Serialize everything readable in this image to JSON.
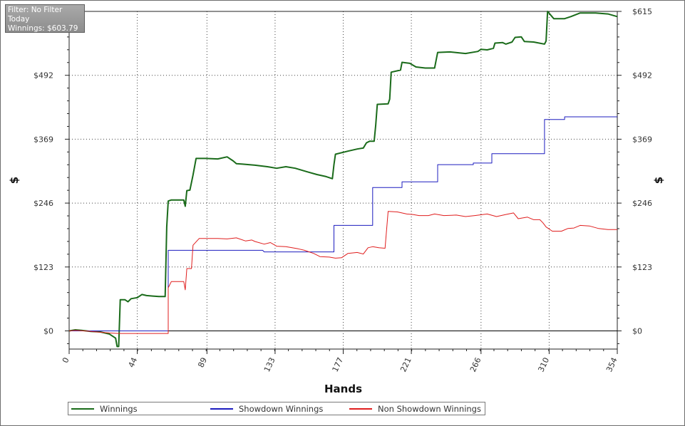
{
  "info_box": {
    "filter": "Filter: No Filter",
    "period": "Today",
    "winnings": "Winnings: $603.79"
  },
  "chart_data": {
    "type": "line",
    "xlabel": "Hands",
    "ylabel": "$",
    "xlim": [
      0,
      354
    ],
    "ylim": [
      -35,
      615
    ],
    "x_ticks": [
      0,
      44,
      89,
      133,
      177,
      221,
      266,
      310,
      354
    ],
    "y_ticks": [
      0,
      123,
      246,
      369,
      492,
      615
    ],
    "y_tick_labels": [
      "$0",
      "$123",
      "$246",
      "$369",
      "$492",
      "$615"
    ],
    "grid": true,
    "legend_position": "bottom",
    "series": [
      {
        "name": "Winnings",
        "color": "#1a6b1a",
        "points": [
          [
            0,
            0
          ],
          [
            4,
            2
          ],
          [
            8,
            1
          ],
          [
            14,
            -1
          ],
          [
            20,
            -2
          ],
          [
            26,
            -6
          ],
          [
            30,
            -14
          ],
          [
            31,
            -30
          ],
          [
            32,
            -30
          ],
          [
            33,
            60
          ],
          [
            36,
            60
          ],
          [
            38,
            56
          ],
          [
            40,
            62
          ],
          [
            44,
            64
          ],
          [
            47,
            70
          ],
          [
            50,
            68
          ],
          [
            54,
            67
          ],
          [
            58,
            66
          ],
          [
            62,
            66
          ],
          [
            63,
            200
          ],
          [
            64,
            250
          ],
          [
            66,
            252
          ],
          [
            74,
            252
          ],
          [
            75,
            240
          ],
          [
            76,
            270
          ],
          [
            78,
            271
          ],
          [
            80,
            300
          ],
          [
            82,
            332
          ],
          [
            88,
            332
          ],
          [
            96,
            331
          ],
          [
            102,
            335
          ],
          [
            106,
            327
          ],
          [
            108,
            322
          ],
          [
            112,
            321
          ],
          [
            120,
            319
          ],
          [
            128,
            316
          ],
          [
            134,
            313
          ],
          [
            140,
            316
          ],
          [
            146,
            313
          ],
          [
            154,
            306
          ],
          [
            160,
            301
          ],
          [
            166,
            297
          ],
          [
            170,
            293
          ],
          [
            171,
            320
          ],
          [
            172,
            340
          ],
          [
            180,
            346
          ],
          [
            186,
            350
          ],
          [
            190,
            352
          ],
          [
            192,
            362
          ],
          [
            194,
            365
          ],
          [
            197,
            365
          ],
          [
            198,
            396
          ],
          [
            199,
            436
          ],
          [
            206,
            437
          ],
          [
            207,
            446
          ],
          [
            208,
            498
          ],
          [
            214,
            502
          ],
          [
            215,
            517
          ],
          [
            220,
            515
          ],
          [
            224,
            508
          ],
          [
            230,
            506
          ],
          [
            236,
            506
          ],
          [
            238,
            536
          ],
          [
            246,
            537
          ],
          [
            252,
            535
          ],
          [
            256,
            534
          ],
          [
            264,
            538
          ],
          [
            266,
            542
          ],
          [
            270,
            541
          ],
          [
            274,
            544
          ],
          [
            275,
            554
          ],
          [
            280,
            555
          ],
          [
            282,
            552
          ],
          [
            286,
            556
          ],
          [
            288,
            565
          ],
          [
            292,
            566
          ],
          [
            294,
            557
          ],
          [
            300,
            556
          ],
          [
            307,
            552
          ],
          [
            308,
            558
          ],
          [
            309,
            615
          ],
          [
            313,
            601
          ],
          [
            320,
            601
          ],
          [
            324,
            605
          ],
          [
            330,
            612
          ],
          [
            340,
            612
          ],
          [
            348,
            610
          ],
          [
            354,
            605
          ]
        ]
      },
      {
        "name": "Showdown Winnings",
        "color": "#1c1cbf",
        "points": [
          [
            0,
            0
          ],
          [
            64,
            0
          ],
          [
            64,
            155
          ],
          [
            125,
            155
          ],
          [
            126,
            152
          ],
          [
            166,
            152
          ],
          [
            171,
            152
          ],
          [
            171,
            203
          ],
          [
            196,
            203
          ],
          [
            196,
            276
          ],
          [
            215,
            276
          ],
          [
            215,
            287
          ],
          [
            238,
            287
          ],
          [
            238,
            320
          ],
          [
            261,
            320
          ],
          [
            261,
            323
          ],
          [
            273,
            323
          ],
          [
            273,
            341
          ],
          [
            307,
            341
          ],
          [
            307,
            407
          ],
          [
            320,
            407
          ],
          [
            320,
            412
          ],
          [
            354,
            412
          ]
        ]
      },
      {
        "name": "Non Showdown Winnings",
        "color": "#e01e1e",
        "points": [
          [
            0,
            0
          ],
          [
            4,
            1
          ],
          [
            10,
            0
          ],
          [
            26,
            -4
          ],
          [
            32,
            -5
          ],
          [
            64,
            -5
          ],
          [
            64,
            83
          ],
          [
            66,
            95
          ],
          [
            74,
            95
          ],
          [
            75,
            79
          ],
          [
            76,
            120
          ],
          [
            79,
            120
          ],
          [
            80,
            165
          ],
          [
            84,
            178
          ],
          [
            90,
            178
          ],
          [
            96,
            178
          ],
          [
            102,
            177
          ],
          [
            108,
            179
          ],
          [
            114,
            173
          ],
          [
            118,
            175
          ],
          [
            120,
            172
          ],
          [
            126,
            167
          ],
          [
            130,
            170
          ],
          [
            134,
            163
          ],
          [
            140,
            162
          ],
          [
            148,
            158
          ],
          [
            152,
            155
          ],
          [
            158,
            149
          ],
          [
            162,
            143
          ],
          [
            168,
            142
          ],
          [
            172,
            140
          ],
          [
            176,
            141
          ],
          [
            180,
            149
          ],
          [
            186,
            151
          ],
          [
            190,
            148
          ],
          [
            193,
            160
          ],
          [
            196,
            162
          ],
          [
            200,
            160
          ],
          [
            204,
            159
          ],
          [
            206,
            230
          ],
          [
            212,
            229
          ],
          [
            218,
            225
          ],
          [
            222,
            224
          ],
          [
            226,
            222
          ],
          [
            232,
            222
          ],
          [
            236,
            225
          ],
          [
            242,
            222
          ],
          [
            250,
            223
          ],
          [
            256,
            220
          ],
          [
            262,
            222
          ],
          [
            270,
            225
          ],
          [
            276,
            220
          ],
          [
            282,
            224
          ],
          [
            287,
            227
          ],
          [
            290,
            216
          ],
          [
            296,
            219
          ],
          [
            300,
            214
          ],
          [
            304,
            214
          ],
          [
            306,
            208
          ],
          [
            308,
            200
          ],
          [
            312,
            192
          ],
          [
            318,
            192
          ],
          [
            322,
            197
          ],
          [
            326,
            198
          ],
          [
            330,
            203
          ],
          [
            336,
            202
          ],
          [
            342,
            197
          ],
          [
            348,
            195
          ],
          [
            354,
            195
          ]
        ]
      }
    ]
  }
}
